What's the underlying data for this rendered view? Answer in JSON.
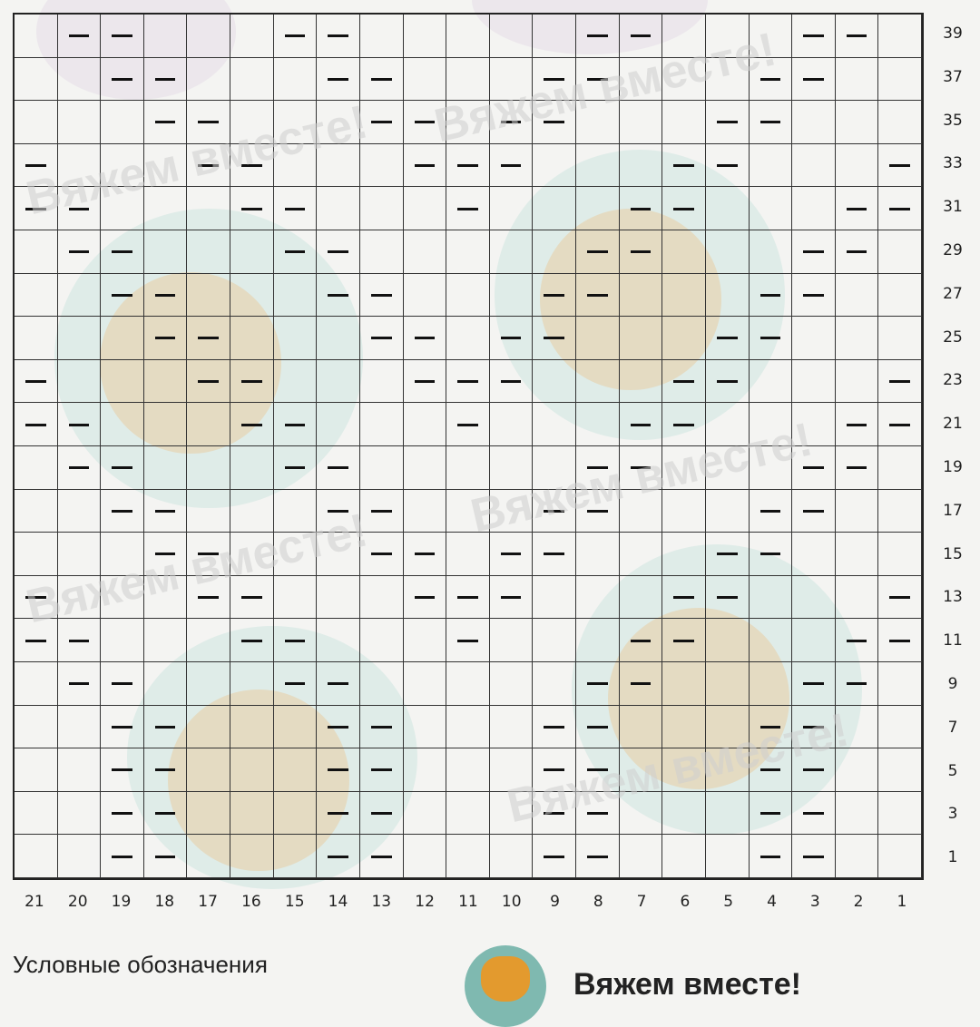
{
  "chart": {
    "columns": [
      21,
      20,
      19,
      18,
      17,
      16,
      15,
      14,
      13,
      12,
      11,
      10,
      9,
      8,
      7,
      6,
      5,
      4,
      3,
      2,
      1
    ],
    "rows": [
      {
        "row": 39,
        "purl": [
          20,
          19,
          15,
          14,
          8,
          7,
          3,
          2
        ]
      },
      {
        "row": 37,
        "purl": [
          19,
          18,
          14,
          13,
          9,
          8,
          4,
          3
        ]
      },
      {
        "row": 35,
        "purl": [
          18,
          17,
          13,
          12,
          10,
          9,
          5,
          4
        ]
      },
      {
        "row": 33,
        "purl": [
          21,
          17,
          16,
          12,
          11,
          10,
          6,
          5,
          1
        ]
      },
      {
        "row": 31,
        "purl": [
          21,
          20,
          16,
          15,
          11,
          7,
          6,
          2,
          1
        ]
      },
      {
        "row": 29,
        "purl": [
          20,
          19,
          15,
          14,
          8,
          7,
          3,
          2
        ]
      },
      {
        "row": 27,
        "purl": [
          19,
          18,
          14,
          13,
          9,
          8,
          4,
          3
        ]
      },
      {
        "row": 25,
        "purl": [
          18,
          17,
          13,
          12,
          10,
          9,
          5,
          4
        ]
      },
      {
        "row": 23,
        "purl": [
          21,
          17,
          16,
          12,
          11,
          10,
          6,
          5,
          1
        ]
      },
      {
        "row": 21,
        "purl": [
          21,
          20,
          16,
          15,
          11,
          7,
          6,
          2,
          1
        ]
      },
      {
        "row": 19,
        "purl": [
          20,
          19,
          15,
          14,
          8,
          7,
          3,
          2
        ]
      },
      {
        "row": 17,
        "purl": [
          19,
          18,
          14,
          13,
          9,
          8,
          4,
          3
        ]
      },
      {
        "row": 15,
        "purl": [
          18,
          17,
          13,
          12,
          10,
          9,
          5,
          4
        ]
      },
      {
        "row": 13,
        "purl": [
          21,
          17,
          16,
          12,
          11,
          10,
          6,
          5,
          1
        ]
      },
      {
        "row": 11,
        "purl": [
          21,
          20,
          16,
          15,
          11,
          7,
          6,
          2,
          1
        ]
      },
      {
        "row": 9,
        "purl": [
          20,
          19,
          15,
          14,
          8,
          7,
          3,
          2
        ]
      },
      {
        "row": 7,
        "purl": [
          19,
          18,
          14,
          13,
          9,
          8,
          4,
          3
        ]
      },
      {
        "row": 5,
        "purl": [
          19,
          18,
          14,
          13,
          9,
          8,
          4,
          3
        ]
      },
      {
        "row": 3,
        "purl": [
          19,
          18,
          14,
          13,
          9,
          8,
          4,
          3
        ]
      },
      {
        "row": 1,
        "purl": [
          19,
          18,
          14,
          13,
          9,
          8,
          4,
          3
        ]
      }
    ]
  },
  "watermark": "Вяжем вместе!",
  "legend": {
    "title": "Условные обозначения"
  },
  "logo": {
    "title": "Вяжем вместе!",
    "icon": "cat-icon"
  },
  "colors": {
    "grid": "#222222",
    "purl": "#111111",
    "background": "#f4f4f2",
    "watermark": "#cfcfcf"
  }
}
